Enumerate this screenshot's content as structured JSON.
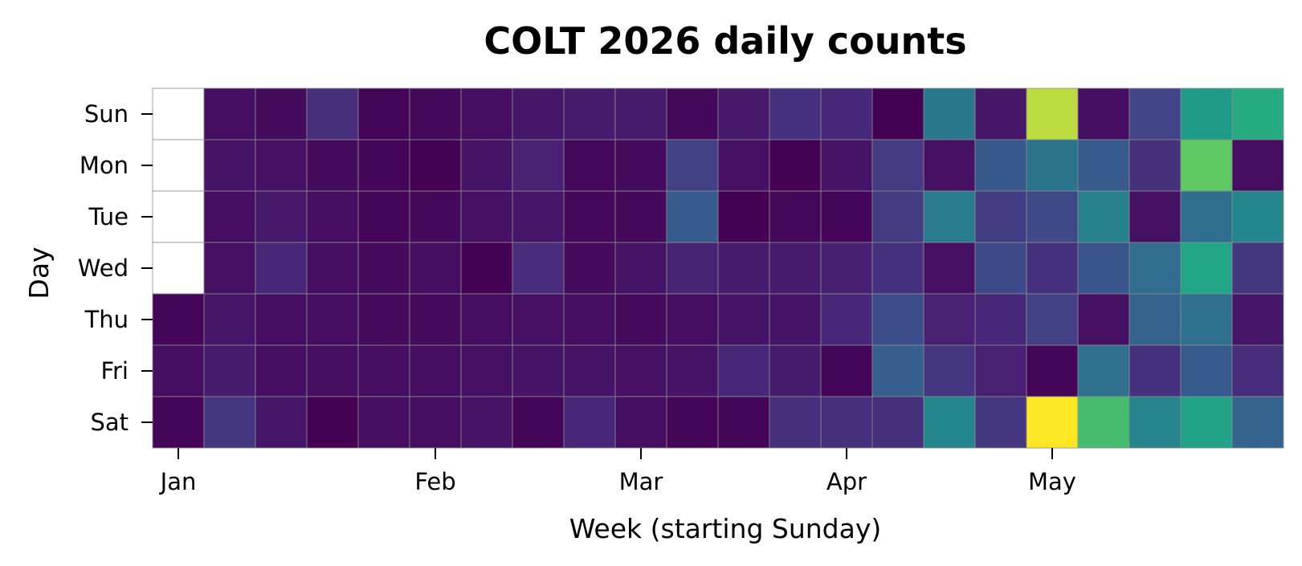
{
  "chart_data": {
    "type": "heatmap",
    "title": "COLT 2026 daily counts",
    "xlabel": "Week (starting Sunday)",
    "ylabel": "Day",
    "rows": [
      "Sun",
      "Mon",
      "Tue",
      "Wed",
      "Thu",
      "Fri",
      "Sat"
    ],
    "week_starts": [
      "2025-12-28",
      "2026-01-04",
      "2026-01-11",
      "2026-01-18",
      "2026-01-25",
      "2026-02-01",
      "2026-02-08",
      "2026-02-15",
      "2026-02-22",
      "2026-03-01",
      "2026-03-08",
      "2026-03-15",
      "2026-03-22",
      "2026-03-29",
      "2026-04-05",
      "2026-04-12",
      "2026-04-19",
      "2026-04-26",
      "2026-05-03",
      "2026-05-10",
      "2026-05-17",
      "2026-05-24"
    ],
    "month_ticks": [
      {
        "label": "Jan",
        "date": "2026-01-01"
      },
      {
        "label": "Feb",
        "date": "2026-02-01"
      },
      {
        "label": "Mar",
        "date": "2026-03-01"
      },
      {
        "label": "Apr",
        "date": "2026-04-01"
      },
      {
        "label": "May",
        "date": "2026-05-01"
      }
    ],
    "colormap": "viridis",
    "value_range": [
      0,
      100
    ],
    "grid": true,
    "legend": "none",
    "values": [
      [
        null,
        5,
        4,
        17,
        1,
        3,
        5,
        8,
        10,
        10,
        3,
        9,
        18,
        14,
        0,
        50,
        8,
        95,
        5,
        25,
        68,
        76
      ],
      [
        null,
        7,
        6,
        4,
        2,
        0,
        7,
        12,
        3,
        4,
        24,
        6,
        0,
        7,
        22,
        6,
        35,
        48,
        36,
        17,
        88,
        5
      ],
      [
        null,
        5,
        9,
        5,
        2,
        3,
        6,
        8,
        3,
        3,
        36,
        0,
        3,
        2,
        22,
        52,
        22,
        28,
        55,
        6,
        45,
        58
      ],
      [
        null,
        6,
        14,
        5,
        4,
        5,
        0,
        16,
        4,
        7,
        13,
        10,
        10,
        11,
        18,
        6,
        28,
        18,
        33,
        44,
        74,
        20
      ],
      [
        2,
        8,
        5,
        5,
        4,
        4,
        5,
        6,
        5,
        4,
        5,
        7,
        7,
        14,
        30,
        12,
        14,
        24,
        6,
        40,
        46,
        8
      ],
      [
        5,
        10,
        5,
        5,
        5,
        5,
        6,
        7,
        7,
        6,
        7,
        14,
        10,
        1,
        38,
        20,
        12,
        2,
        46,
        18,
        36,
        16
      ],
      [
        2,
        20,
        8,
        0,
        5,
        5,
        7,
        2,
        14,
        5,
        2,
        2,
        17,
        17,
        17,
        58,
        20,
        100,
        83,
        56,
        72,
        40
      ]
    ]
  }
}
